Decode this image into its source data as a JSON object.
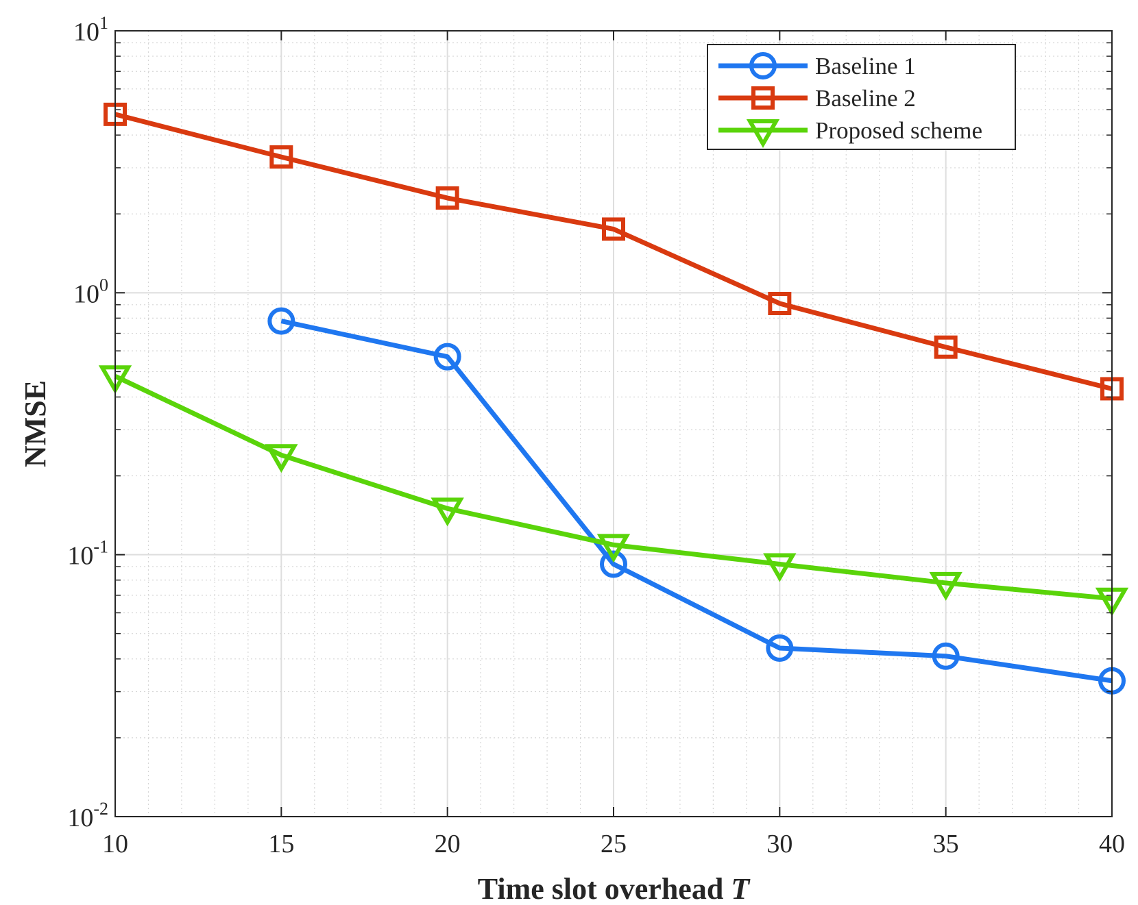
{
  "chart_data": {
    "type": "line",
    "yscale": "log",
    "title": "",
    "xlabel": "Time slot overhead",
    "xlabel_var": "T",
    "ylabel": "NMSE",
    "xlim": [
      10,
      40
    ],
    "ylim": [
      0.01,
      10
    ],
    "xticks": [
      10,
      15,
      20,
      25,
      30,
      35,
      40
    ],
    "xtick_labels": [
      "10",
      "15",
      "20",
      "25",
      "30",
      "35",
      "40"
    ],
    "yticks": [
      {
        "value": 10,
        "base": "10",
        "exp": "1"
      },
      {
        "value": 1,
        "base": "10",
        "exp": "0"
      },
      {
        "value": 0.1,
        "base": "10",
        "exp": "-1"
      },
      {
        "value": 0.01,
        "base": "10",
        "exp": "-2"
      }
    ],
    "grid": true,
    "minor_grid": true,
    "legend_position": "top-right",
    "series": [
      {
        "name": "Baseline 1",
        "color": "#1f77f0",
        "marker": "circle",
        "x": [
          15,
          20,
          25,
          30,
          35,
          40
        ],
        "values": [
          0.78,
          0.57,
          0.092,
          0.044,
          0.041,
          0.033
        ]
      },
      {
        "name": "Baseline 2",
        "color": "#d93a10",
        "marker": "square",
        "x": [
          10,
          15,
          20,
          25,
          30,
          35,
          40
        ],
        "values": [
          4.8,
          3.3,
          2.3,
          1.75,
          0.91,
          0.62,
          0.43
        ]
      },
      {
        "name": "Proposed scheme",
        "color": "#5ad40a",
        "marker": "triangle-down",
        "x": [
          10,
          15,
          20,
          25,
          30,
          35,
          40
        ],
        "values": [
          0.48,
          0.24,
          0.15,
          0.109,
          0.092,
          0.078,
          0.068
        ]
      }
    ]
  }
}
